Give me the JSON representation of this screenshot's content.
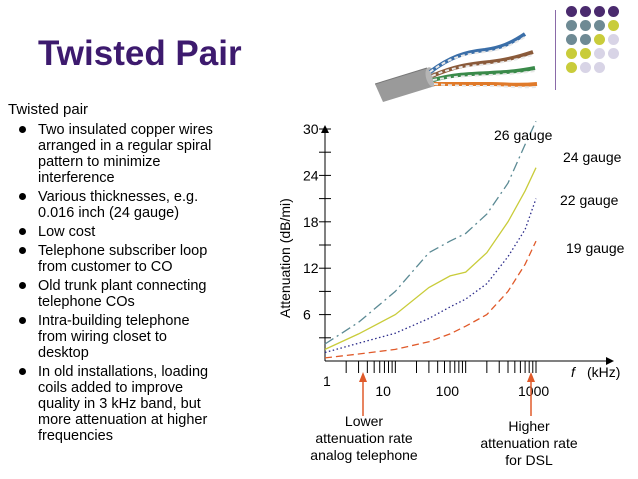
{
  "slide": {
    "title": "Twisted Pair",
    "intro": "Twisted pair",
    "bullets": [
      {
        "lines": [
          "Two insulated copper wires",
          "arranged in a regular spiral",
          "pattern to minimize",
          "interference"
        ]
      },
      {
        "lines": [
          "Various thicknesses, e.g.",
          "0.016 inch (24 gauge)"
        ]
      },
      {
        "lines": [
          "Low cost"
        ]
      },
      {
        "lines": [
          "Telephone subscriber loop",
          "from customer to CO"
        ]
      },
      {
        "lines": [
          "Old trunk plant connecting",
          "telephone COs"
        ]
      },
      {
        "lines": [
          "Intra-building telephone",
          "from wiring closet to",
          "desktop"
        ]
      },
      {
        "lines": [
          "In old installations, loading",
          "coils added to improve",
          "quality in 3 kHz band, but",
          "more attenuation at higher",
          "frequencies"
        ]
      }
    ]
  },
  "decor": {
    "dot_colors": [
      "#4a2a6e",
      "#6e8a94",
      "#c9cc3a",
      "#d8d4e6"
    ]
  },
  "chart_data": {
    "type": "line",
    "ylabel": "Attenuation (dB/mi)",
    "xlabel_italic": "f",
    "xlabel_unit": "(kHz)",
    "x_scale": "log",
    "x_ticks": [
      "1",
      "10",
      "100",
      "1000"
    ],
    "y_ticks": [
      "6",
      "12",
      "18",
      "24",
      "30"
    ],
    "ylim": [
      0,
      30
    ],
    "xlim": [
      1,
      1000
    ],
    "series": [
      {
        "name": "26 gauge",
        "style": "dash-dot",
        "color": "#5b8a94",
        "points": [
          [
            1,
            2.2
          ],
          [
            3,
            5
          ],
          [
            10,
            9
          ],
          [
            30,
            14
          ],
          [
            60,
            15.5
          ],
          [
            100,
            16.5
          ],
          [
            200,
            19
          ],
          [
            400,
            23
          ],
          [
            700,
            28
          ],
          [
            1000,
            31
          ]
        ]
      },
      {
        "name": "24 gauge",
        "style": "solid",
        "color": "#c9cc3a",
        "points": [
          [
            1,
            1.5
          ],
          [
            3,
            3.5
          ],
          [
            10,
            6
          ],
          [
            30,
            9.5
          ],
          [
            60,
            11
          ],
          [
            100,
            11.5
          ],
          [
            200,
            14
          ],
          [
            400,
            18
          ],
          [
            700,
            22
          ],
          [
            1000,
            25
          ]
        ]
      },
      {
        "name": "22 gauge",
        "style": "dotted",
        "color": "#2a2a8a",
        "points": [
          [
            1,
            1.1
          ],
          [
            3,
            2.3
          ],
          [
            10,
            3.6
          ],
          [
            30,
            5.5
          ],
          [
            60,
            7
          ],
          [
            100,
            8
          ],
          [
            200,
            10
          ],
          [
            400,
            13.5
          ],
          [
            700,
            17
          ],
          [
            1000,
            21
          ]
        ]
      },
      {
        "name": "19 gauge",
        "style": "dashed",
        "color": "#e05a2a",
        "points": [
          [
            1,
            0.4
          ],
          [
            3,
            0.9
          ],
          [
            10,
            1.5
          ],
          [
            30,
            2.5
          ],
          [
            60,
            3.5
          ],
          [
            100,
            4.5
          ],
          [
            200,
            6
          ],
          [
            400,
            9
          ],
          [
            700,
            12.5
          ],
          [
            1000,
            15.5
          ]
        ]
      }
    ],
    "annotations": [
      {
        "lines": [
          "Lower",
          "attenuation rate",
          "analog telephone"
        ]
      },
      {
        "lines": [
          "Higher",
          "attenuation rate",
          "for DSL"
        ]
      }
    ]
  }
}
